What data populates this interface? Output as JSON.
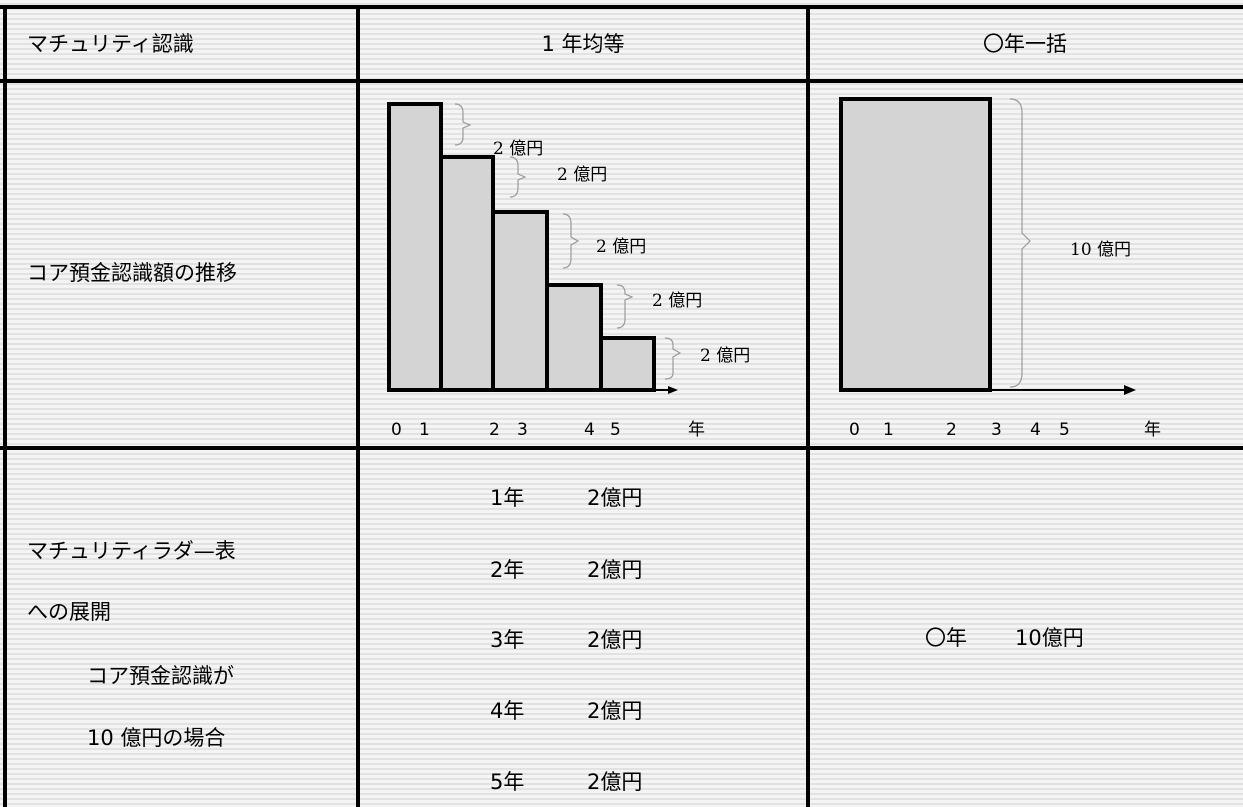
{
  "header": {
    "col1": "マチュリティ認識",
    "col2": "1 年均等",
    "col3": "〇年一括"
  },
  "row1": {
    "label": "コア預金認識額の推移",
    "equal_chart": {
      "bar_labels": [
        {
          "num": "2",
          "unit": "億円"
        },
        {
          "num": "2",
          "unit": "億円"
        },
        {
          "num": "2",
          "unit": "億円"
        },
        {
          "num": "2",
          "unit": "億円"
        },
        {
          "num": "2",
          "unit": "億円"
        }
      ],
      "x_ticks": [
        "0",
        "1",
        "2",
        "3",
        "4",
        "5"
      ],
      "x_unit": "年"
    },
    "lump_chart": {
      "amount_num": "10",
      "amount_unit": "億円",
      "x_ticks": [
        "0",
        "1",
        "2",
        "3",
        "4",
        "5"
      ],
      "x_unit": "年"
    }
  },
  "row2": {
    "label_lines": [
      "マチュリティラダ—表",
      "への展開",
      "コア預金認識が",
      "10 億円の場合"
    ],
    "equal_items": [
      {
        "year": "1年",
        "amount": "2億円"
      },
      {
        "year": "2年",
        "amount": "2億円"
      },
      {
        "year": "3年",
        "amount": "2億円"
      },
      {
        "year": "4年",
        "amount": "2億円"
      },
      {
        "year": "5年",
        "amount": "2億円"
      }
    ],
    "lump_item": {
      "year": "〇年",
      "amount": "10億円"
    }
  }
}
